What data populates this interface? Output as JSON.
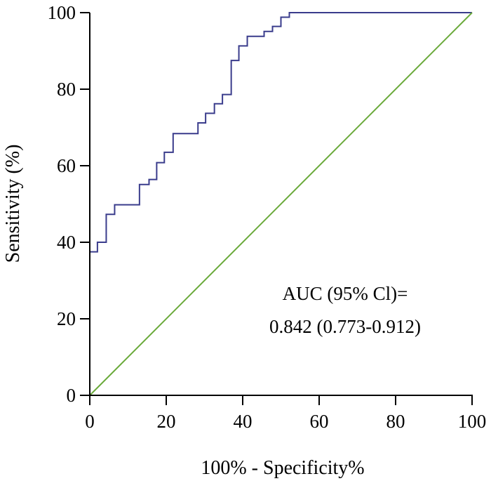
{
  "chart_data": {
    "type": "line",
    "title": "",
    "xlabel": "100% - Specificity%",
    "ylabel": "Sensitivity (%)",
    "xlim": [
      0,
      100
    ],
    "ylim": [
      0,
      100
    ],
    "xticks": [
      0,
      20,
      40,
      60,
      80,
      100
    ],
    "yticks": [
      0,
      20,
      40,
      60,
      80,
      100
    ],
    "grid": false,
    "annotation": {
      "line1": "AUC (95% Cl)=",
      "line2": "0.842 (0.773-0.912)"
    },
    "series": [
      {
        "color": "#3a3c8c",
        "step": true,
        "points": [
          [
            0,
            0
          ],
          [
            0,
            37.5
          ],
          [
            2,
            37.5
          ],
          [
            2,
            40
          ],
          [
            4.3,
            40
          ],
          [
            4.3,
            47.3
          ],
          [
            6.5,
            47.3
          ],
          [
            6.5,
            49.8
          ],
          [
            13,
            49.8
          ],
          [
            13,
            55.1
          ],
          [
            15.5,
            55.1
          ],
          [
            15.5,
            56.4
          ],
          [
            17.5,
            56.4
          ],
          [
            17.5,
            60.8
          ],
          [
            19.5,
            60.8
          ],
          [
            19.5,
            63.5
          ],
          [
            21.8,
            63.5
          ],
          [
            21.8,
            68.4
          ],
          [
            28.3,
            68.4
          ],
          [
            28.3,
            71.2
          ],
          [
            30.3,
            71.2
          ],
          [
            30.3,
            73.7
          ],
          [
            32.6,
            73.7
          ],
          [
            32.6,
            76.2
          ],
          [
            34.7,
            76.2
          ],
          [
            34.7,
            78.6
          ],
          [
            37,
            78.6
          ],
          [
            37,
            87.5
          ],
          [
            39,
            87.5
          ],
          [
            39,
            91.3
          ],
          [
            41.2,
            91.3
          ],
          [
            41.2,
            93.8
          ],
          [
            45.6,
            93.8
          ],
          [
            45.6,
            95.1
          ],
          [
            47.8,
            95.1
          ],
          [
            47.8,
            96.4
          ],
          [
            50,
            96.4
          ],
          [
            50,
            98.8
          ],
          [
            52.2,
            98.8
          ],
          [
            52.2,
            100
          ],
          [
            100,
            100
          ]
        ]
      },
      {
        "color": "#6aaa3a",
        "step": false,
        "points": [
          [
            0,
            0
          ],
          [
            100,
            100
          ]
        ]
      }
    ]
  }
}
